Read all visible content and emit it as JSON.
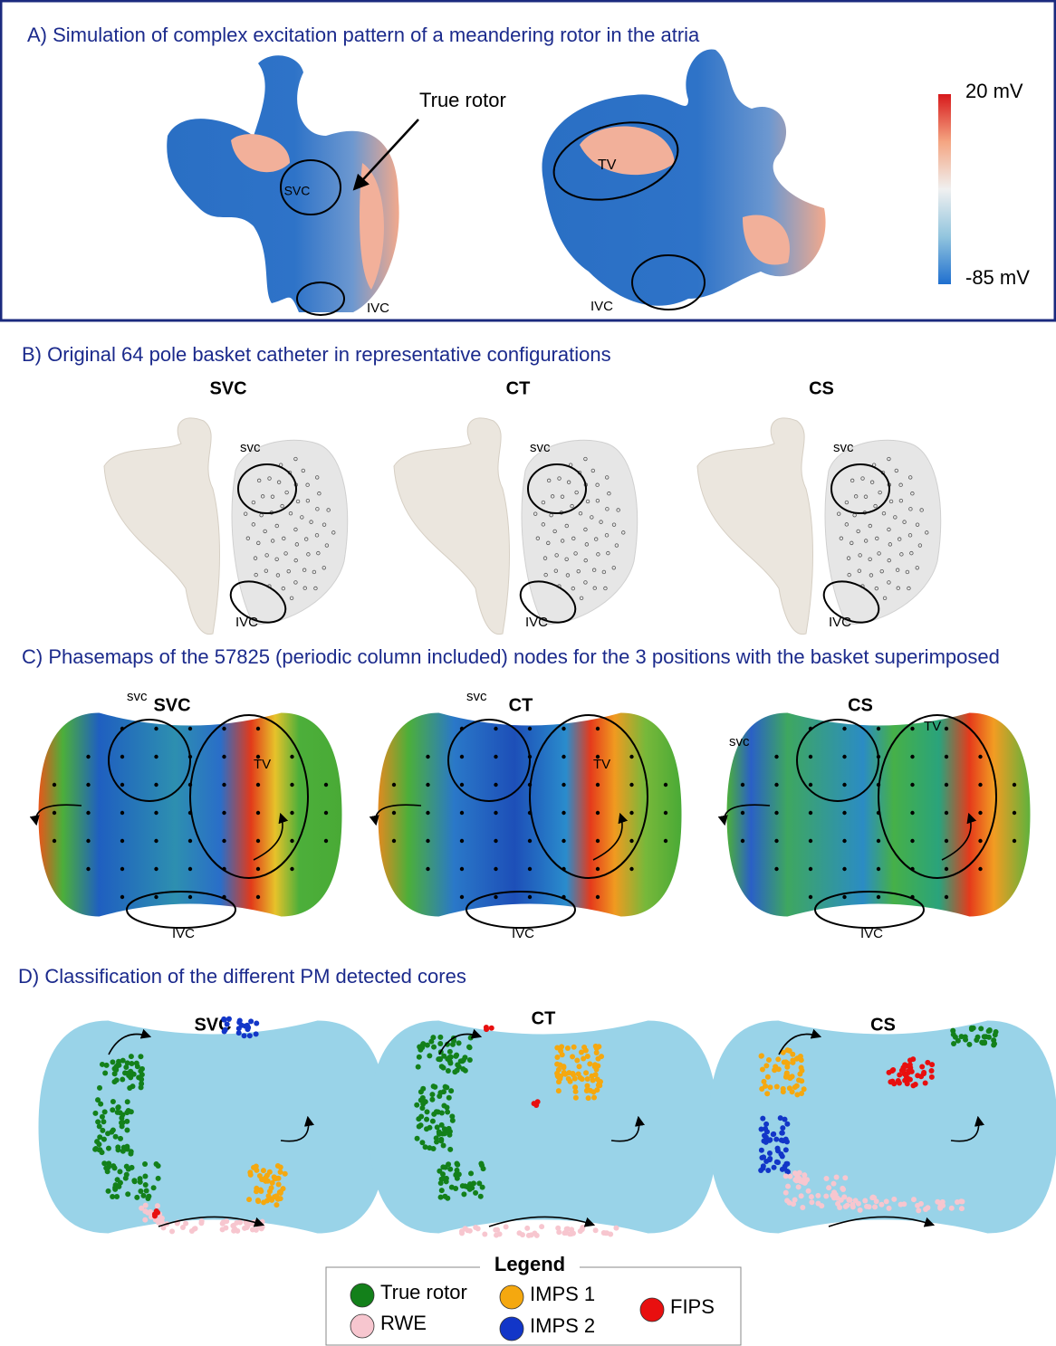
{
  "panel_a": {
    "title": "A) Simulation of complex excitation pattern of a meandering rotor in the atria",
    "annotation": "True rotor",
    "left_labels": [
      "SVC",
      "IVC"
    ],
    "right_labels": [
      "TV",
      "IVC"
    ],
    "colorbar": {
      "max_label": "20 mV",
      "min_label": "-85 mV"
    }
  },
  "panel_b": {
    "title": "B) Original 64 pole basket catheter in representative configurations",
    "views": [
      {
        "title": "SVC",
        "labels": [
          "svc",
          "IVC"
        ]
      },
      {
        "title": "CT",
        "labels": [
          "svc",
          "IVC"
        ]
      },
      {
        "title": "CS",
        "labels": [
          "svc",
          "IVC"
        ]
      }
    ]
  },
  "panel_c": {
    "title": "C) Phasemaps of the 57825 (periodic column included) nodes  for the 3 positions with the basket superimposed",
    "views": [
      {
        "title": "SVC",
        "labels": [
          "svc",
          "TV",
          "IVC"
        ]
      },
      {
        "title": "CT",
        "labels": [
          "svc",
          "TV",
          "IVC"
        ]
      },
      {
        "title": "CS",
        "labels": [
          "svc",
          "TV",
          "IVC"
        ]
      }
    ]
  },
  "panel_d": {
    "title": "D) Classification of the different PM detected cores",
    "views": [
      {
        "title": "SVC"
      },
      {
        "title": "CT"
      },
      {
        "title": "CS"
      }
    ]
  },
  "legend": {
    "title": "Legend",
    "items": [
      {
        "label": "True rotor",
        "color": "#13801a"
      },
      {
        "label": "RWE",
        "color": "#f7c6cf"
      },
      {
        "label": "IMPS 1",
        "color": "#f5a80f"
      },
      {
        "label": "IMPS 2",
        "color": "#1236c8"
      },
      {
        "label": "FIPS",
        "color": "#e80f0f"
      }
    ]
  }
}
